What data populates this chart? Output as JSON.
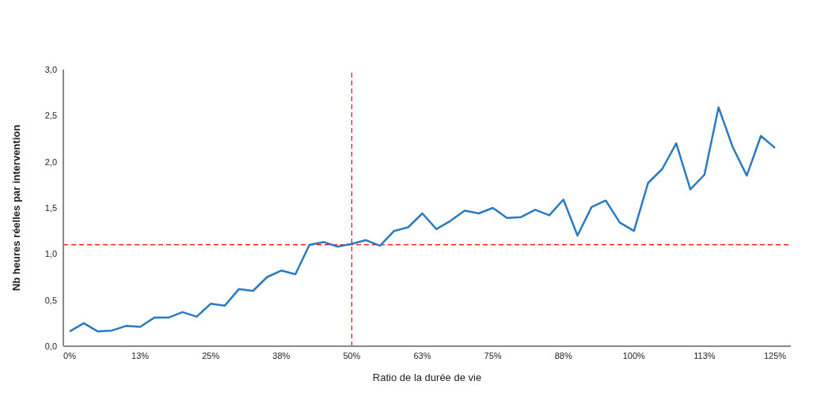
{
  "chart_data": {
    "type": "line",
    "xlabel": "Ratio de la durée de vie",
    "ylabel": "Nb heures réelles par intervention",
    "categories": [
      "0%",
      null,
      null,
      null,
      null,
      "13%",
      null,
      null,
      null,
      null,
      "25%",
      null,
      null,
      null,
      null,
      "38%",
      null,
      null,
      null,
      null,
      "50%",
      null,
      null,
      null,
      null,
      "63%",
      null,
      null,
      null,
      null,
      "75%",
      null,
      null,
      null,
      null,
      "88%",
      null,
      null,
      null,
      null,
      "100%",
      null,
      null,
      null,
      null,
      "113%",
      null,
      null,
      null,
      null,
      "125%"
    ],
    "series": [
      {
        "color": "#2a7ac0",
        "values": [
          0.16,
          0.25,
          0.16,
          0.17,
          0.22,
          0.21,
          0.31,
          0.31,
          0.37,
          0.32,
          0.46,
          0.44,
          0.62,
          0.6,
          0.75,
          0.82,
          0.78,
          1.1,
          1.13,
          1.08,
          1.11,
          1.15,
          1.09,
          1.25,
          1.29,
          1.44,
          1.27,
          1.36,
          1.47,
          1.44,
          1.5,
          1.39,
          1.4,
          1.48,
          1.42,
          1.59,
          1.2,
          1.51,
          1.58,
          1.34,
          1.25,
          1.77,
          1.92,
          2.2,
          1.7,
          1.86,
          2.59,
          2.16,
          1.85,
          2.28,
          2.15
        ]
      }
    ],
    "ylim": [
      0,
      3
    ],
    "yticks": [
      {
        "value": 0,
        "label": "0,0"
      },
      {
        "value": 0.5,
        "label": "0,5"
      },
      {
        "value": 1,
        "label": "1,0"
      },
      {
        "value": 1.5,
        "label": "1,5"
      },
      {
        "value": 2,
        "label": "2,0"
      },
      {
        "value": 2.5,
        "label": "2,5"
      },
      {
        "value": 3,
        "label": "3,0"
      }
    ],
    "ref_lines": [
      {
        "axis": "y",
        "value": 1.1,
        "color": "#ff0000",
        "line_style": "dashed"
      },
      {
        "axis": "x",
        "value": "50%",
        "color": "#ff0000",
        "line_style": "dashed"
      }
    ],
    "grid": false,
    "legend": false,
    "marker": "none",
    "line_style": "solid"
  }
}
